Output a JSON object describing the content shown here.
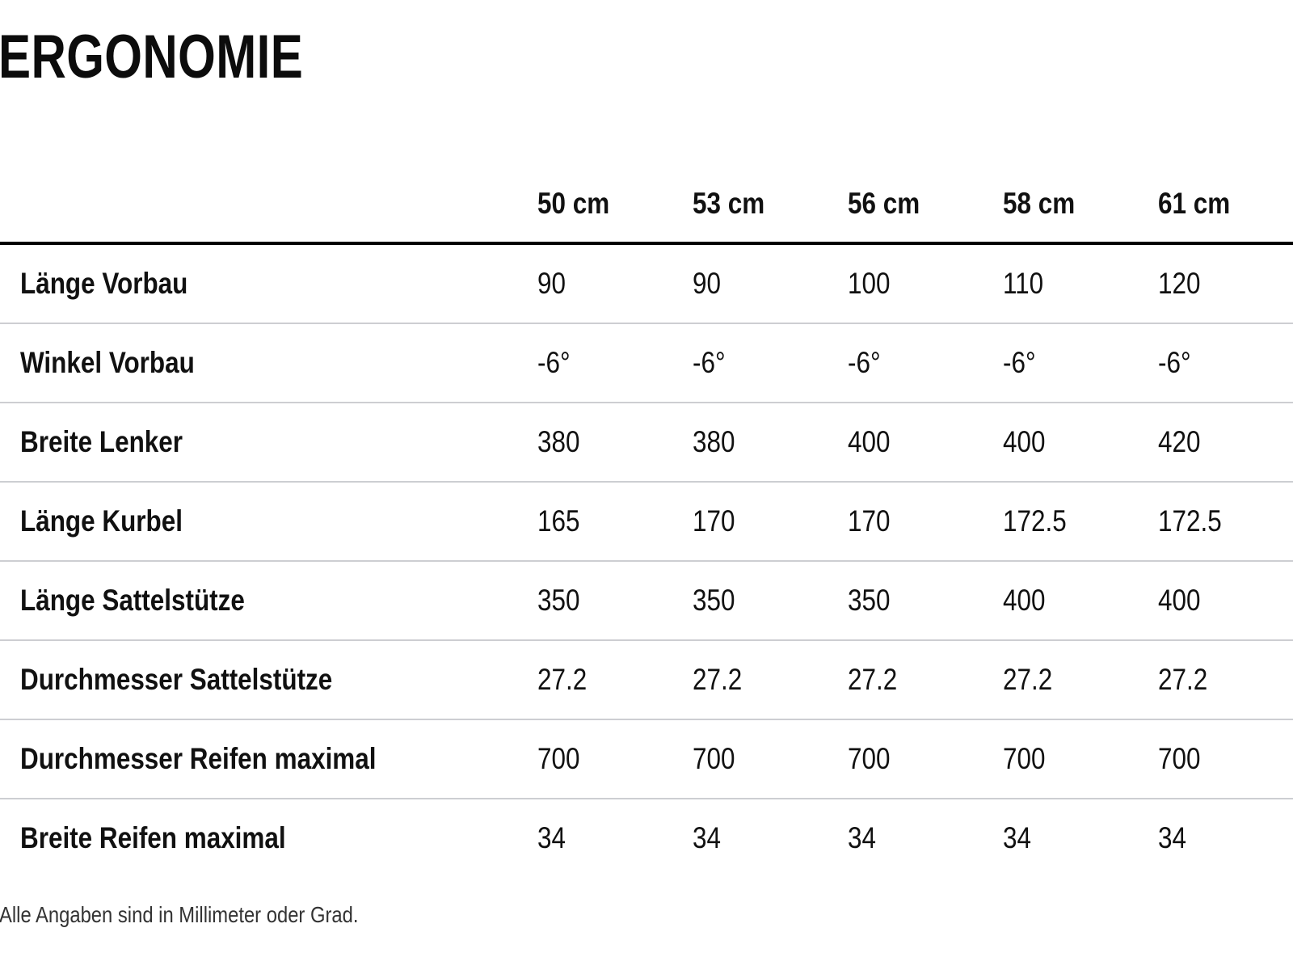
{
  "title": "ERGONOMIE",
  "table": {
    "columns": [
      "50 cm",
      "53 cm",
      "56 cm",
      "58 cm",
      "61 cm"
    ],
    "rows": [
      {
        "label": "Länge Vorbau",
        "values": [
          "90",
          "90",
          "100",
          "110",
          "120"
        ]
      },
      {
        "label": "Winkel Vorbau",
        "values": [
          "-6°",
          "-6°",
          "-6°",
          "-6°",
          "-6°"
        ]
      },
      {
        "label": "Breite Lenker",
        "values": [
          "380",
          "380",
          "400",
          "400",
          "420"
        ]
      },
      {
        "label": "Länge Kurbel",
        "values": [
          "165",
          "170",
          "170",
          "172.5",
          "172.5"
        ]
      },
      {
        "label": "Länge Sattelstütze",
        "values": [
          "350",
          "350",
          "350",
          "400",
          "400"
        ]
      },
      {
        "label": "Durchmesser Sattelstütze",
        "values": [
          "27.2",
          "27.2",
          "27.2",
          "27.2",
          "27.2"
        ]
      },
      {
        "label": "Durchmesser Reifen maximal",
        "values": [
          "700",
          "700",
          "700",
          "700",
          "700"
        ]
      },
      {
        "label": "Breite Reifen maximal",
        "values": [
          "34",
          "34",
          "34",
          "34",
          "34"
        ]
      }
    ]
  },
  "footnote": "Alle Angaben sind in Millimeter oder Grad.",
  "colors": {
    "background": "#ffffff",
    "text": "#111111",
    "rule_strong": "#000000",
    "rule_light": "#cdced2"
  }
}
